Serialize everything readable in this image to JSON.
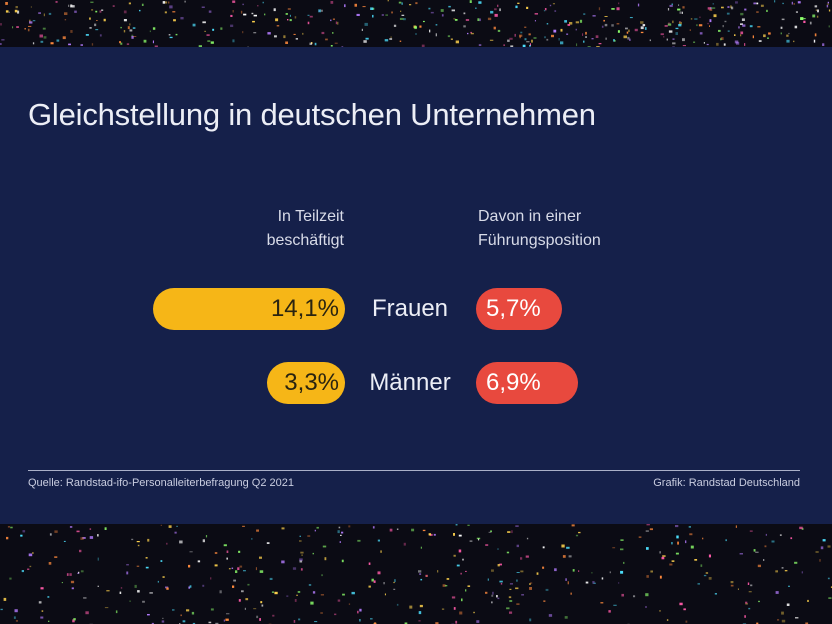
{
  "colors": {
    "background_panel": "#15204a",
    "left_bars": "#f6b617",
    "right_bars": "#e8493e",
    "text": "#eceef6"
  },
  "chart_data": {
    "type": "bar",
    "title": "Gleichstellung in deutschen Unternehmen",
    "categories": [
      "Frauen",
      "Männer"
    ],
    "series": [
      {
        "name": "In Teilzeit beschäftigt",
        "values": [
          14.1,
          3.3
        ],
        "labels": [
          "14,1%",
          "3,3%"
        ]
      },
      {
        "name": "Davon in einer Führungsposition",
        "values": [
          5.7,
          6.9
        ],
        "labels": [
          "5,7%",
          "6,9%"
        ]
      }
    ],
    "column_headers": {
      "left": "In Teilzeit\nbeschäftigt",
      "right": "Davon in einer\nFührungsposition"
    },
    "legend": "none",
    "grid": false,
    "source": "Quelle: Randstad-ifo-Personalleiterbefragung Q2 2021",
    "credit": "Grafik: Randstad Deutschland"
  }
}
